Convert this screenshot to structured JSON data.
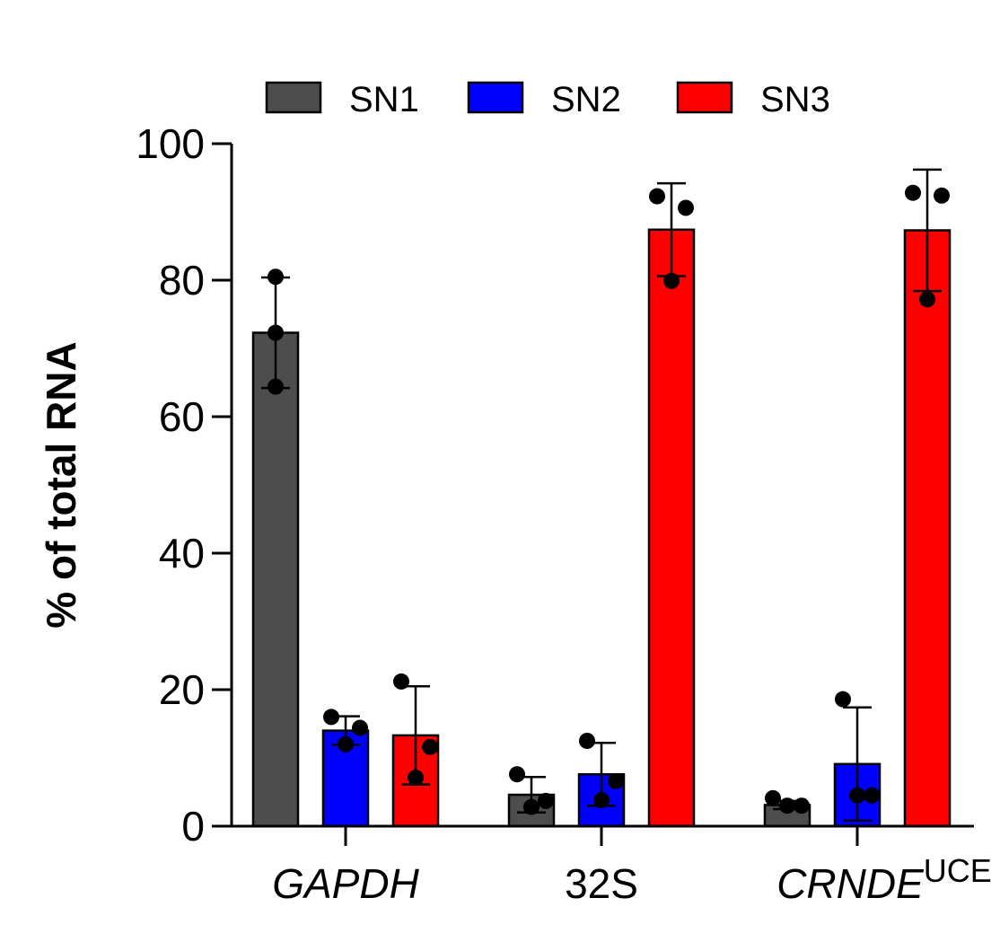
{
  "chart_data": {
    "type": "bar",
    "ylabel": "% of total RNA",
    "ylim": [
      0,
      100
    ],
    "yticks": [
      0,
      20,
      40,
      60,
      80,
      100
    ],
    "categories": [
      {
        "label": "GAPDH",
        "italic": true,
        "sup": ""
      },
      {
        "label": "32S",
        "italic": false,
        "sup": ""
      },
      {
        "label": "CRNDE",
        "italic": true,
        "sup": "UCE"
      }
    ],
    "legend": {
      "placement": "top"
    },
    "series": [
      {
        "name": "SN1",
        "color": "#4d4d4d",
        "values": [
          72.3,
          4.6,
          3.1
        ],
        "sd": [
          8.1,
          2.6,
          0.6
        ],
        "points": [
          [
            80.5,
            72.3,
            64.4
          ],
          [
            7.6,
            3.7,
            2.8
          ],
          [
            4.1,
            3.0,
            3.0
          ]
        ]
      },
      {
        "name": "SN2",
        "color": "#0000ff",
        "values": [
          14.0,
          7.6,
          9.1
        ],
        "sd": [
          2.1,
          4.6,
          8.3
        ],
        "points": [
          [
            16.0,
            14.4,
            12.0
          ],
          [
            12.5,
            6.6,
            3.8
          ],
          [
            18.6,
            4.5,
            4.5
          ]
        ]
      },
      {
        "name": "SN3",
        "color": "#ff0000",
        "values": [
          13.3,
          87.4,
          87.3
        ],
        "sd": [
          7.2,
          6.8,
          8.9
        ],
        "points": [
          [
            21.2,
            11.6,
            7.1
          ],
          [
            92.3,
            90.6,
            79.9
          ],
          [
            92.8,
            92.4,
            77.2
          ]
        ]
      }
    ]
  }
}
